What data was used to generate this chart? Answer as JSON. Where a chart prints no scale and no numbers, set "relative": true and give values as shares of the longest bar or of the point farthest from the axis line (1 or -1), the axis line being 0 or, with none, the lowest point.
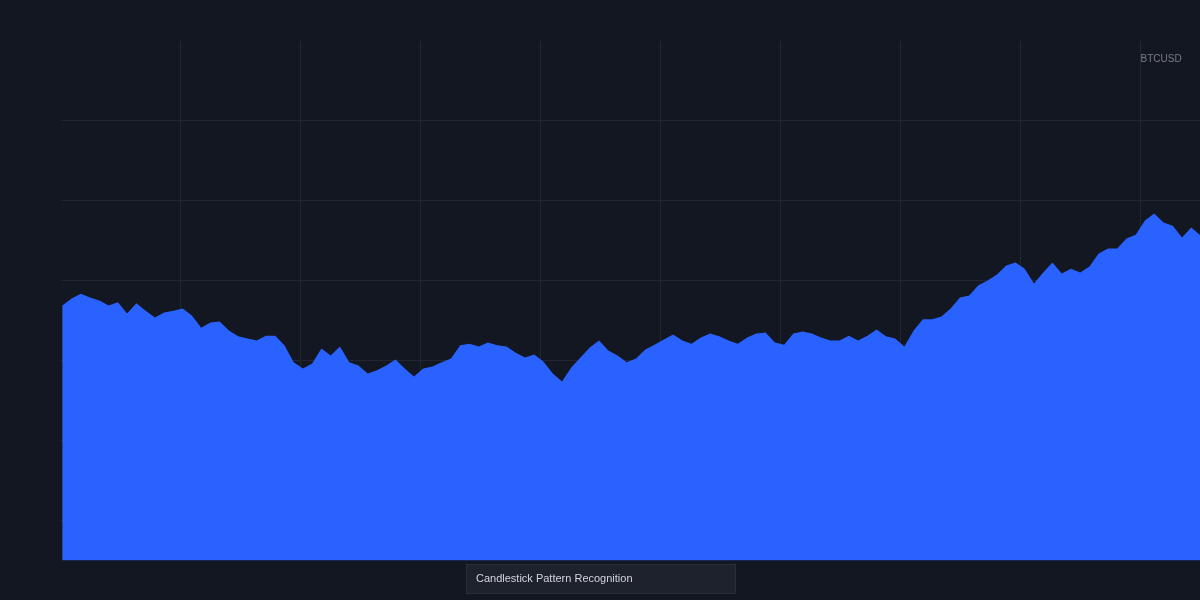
{
  "chart_data": {
    "type": "area",
    "title": "BTCUSD",
    "relative": true,
    "grid": true,
    "annotations": [
      "Candlestick Pattern Recognition"
    ],
    "categories": [
      null,
      null,
      null,
      null,
      null,
      null,
      null,
      null,
      null,
      null,
      null,
      null,
      null,
      null,
      null,
      null,
      null,
      null,
      null,
      null,
      null,
      null,
      null,
      null,
      null,
      null,
      null,
      null,
      null,
      null,
      null,
      null,
      null,
      null,
      null,
      null,
      null,
      null,
      null,
      null,
      null,
      null,
      null,
      null,
      null,
      null,
      null,
      null,
      null,
      null,
      null,
      null,
      null,
      null,
      null,
      null,
      null,
      null,
      null,
      null,
      null,
      null,
      null,
      null,
      null,
      null,
      null,
      null,
      null,
      null,
      null,
      null,
      null,
      null,
      null,
      null,
      null,
      null,
      null,
      null,
      null,
      null,
      null,
      null,
      null,
      null,
      null,
      null,
      null,
      null,
      null,
      null,
      null,
      null,
      null,
      null,
      null,
      null,
      null,
      null,
      null,
      null,
      null,
      null,
      null,
      null,
      null,
      null,
      null,
      null,
      null,
      null,
      null,
      null,
      null,
      null,
      null,
      null,
      null,
      null,
      null,
      null,
      null,
      null
    ],
    "series": [
      {
        "color": "#2962ff",
        "values": [
          0.735,
          0.755,
          0.769,
          0.758,
          0.749,
          0.735,
          0.744,
          0.712,
          0.741,
          0.72,
          0.7,
          0.715,
          0.72,
          0.726,
          0.706,
          0.671,
          0.686,
          0.689,
          0.663,
          0.646,
          0.64,
          0.634,
          0.648,
          0.648,
          0.62,
          0.571,
          0.553,
          0.568,
          0.611,
          0.591,
          0.617,
          0.571,
          0.562,
          0.539,
          0.548,
          0.562,
          0.579,
          0.553,
          0.53,
          0.553,
          0.559,
          0.571,
          0.582,
          0.62,
          0.625,
          0.617,
          0.628,
          0.62,
          0.617,
          0.599,
          0.585,
          0.594,
          0.573,
          0.539,
          0.516,
          0.556,
          0.585,
          0.614,
          0.634,
          0.605,
          0.591,
          0.571,
          0.582,
          0.608,
          0.622,
          0.637,
          0.651,
          0.634,
          0.625,
          0.643,
          0.654,
          0.646,
          0.634,
          0.625,
          0.643,
          0.654,
          0.657,
          0.628,
          0.622,
          0.654,
          0.66,
          0.654,
          0.643,
          0.634,
          0.634,
          0.648,
          0.634,
          0.648,
          0.666,
          0.646,
          0.64,
          0.617,
          0.663,
          0.695,
          0.695,
          0.703,
          0.726,
          0.758,
          0.764,
          0.793,
          0.807,
          0.824,
          0.85,
          0.859,
          0.841,
          0.798,
          0.83,
          0.859,
          0.827,
          0.841,
          0.83,
          0.847,
          0.885,
          0.899,
          0.899,
          0.928,
          0.939,
          0.98,
          1.0,
          0.974,
          0.965,
          0.931,
          0.96,
          0.937
        ]
      }
    ]
  }
}
